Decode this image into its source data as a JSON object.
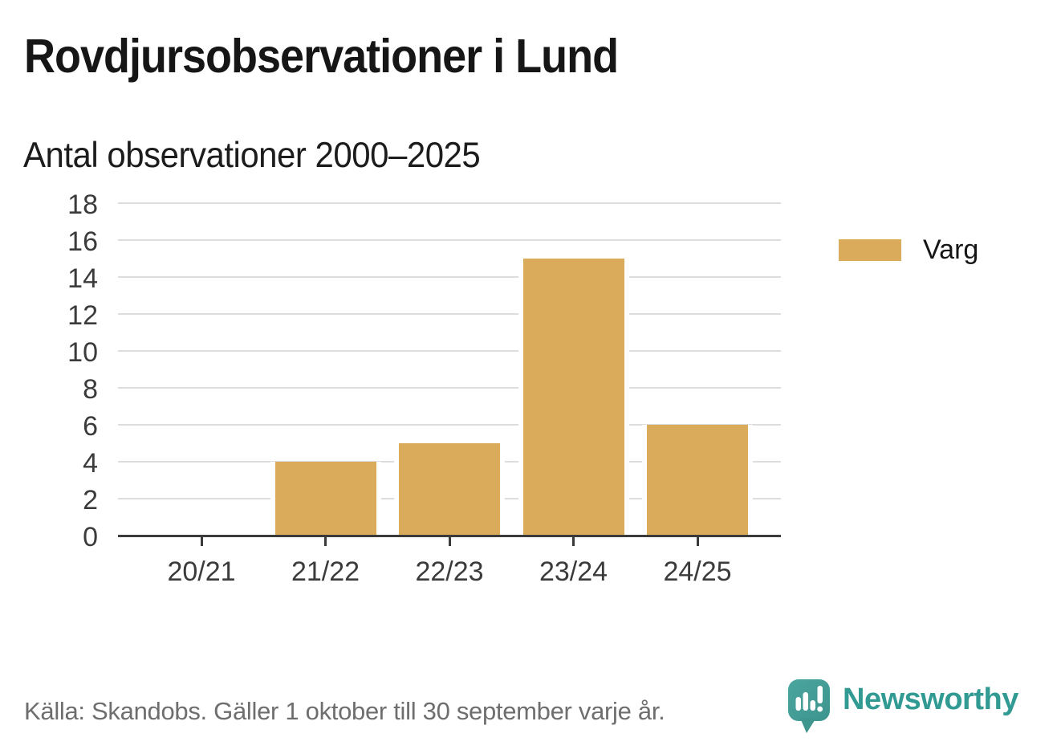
{
  "header": {
    "title": "Rovdjursobservationer i Lund",
    "subtitle": "Antal observationer 2000–2025"
  },
  "legend": {
    "items": [
      {
        "label": "Varg",
        "color": "#d9ab5b"
      }
    ]
  },
  "footer": {
    "source": "Källa: Skandobs. Gäller 1 oktober till 30 september varje år.",
    "brand": "Newsworthy",
    "brand_color": "#319a93",
    "logo_icon_color": "#45a09a"
  },
  "chart_data": {
    "type": "bar",
    "categories": [
      "20/21",
      "21/22",
      "22/23",
      "23/24",
      "24/25"
    ],
    "series": [
      {
        "name": "Varg",
        "values": [
          0,
          4,
          5,
          15,
          6
        ],
        "color": "#d9ab5b"
      }
    ],
    "title": "Rovdjursobservationer i Lund",
    "subtitle": "Antal observationer 2000–2025",
    "xlabel": "",
    "ylabel": "",
    "ylim": [
      0,
      18
    ],
    "ytick_step": 2,
    "grid": true,
    "gridline_color": "#dddddd",
    "axis_color": "#3b3b3b",
    "legend_position": "right"
  }
}
